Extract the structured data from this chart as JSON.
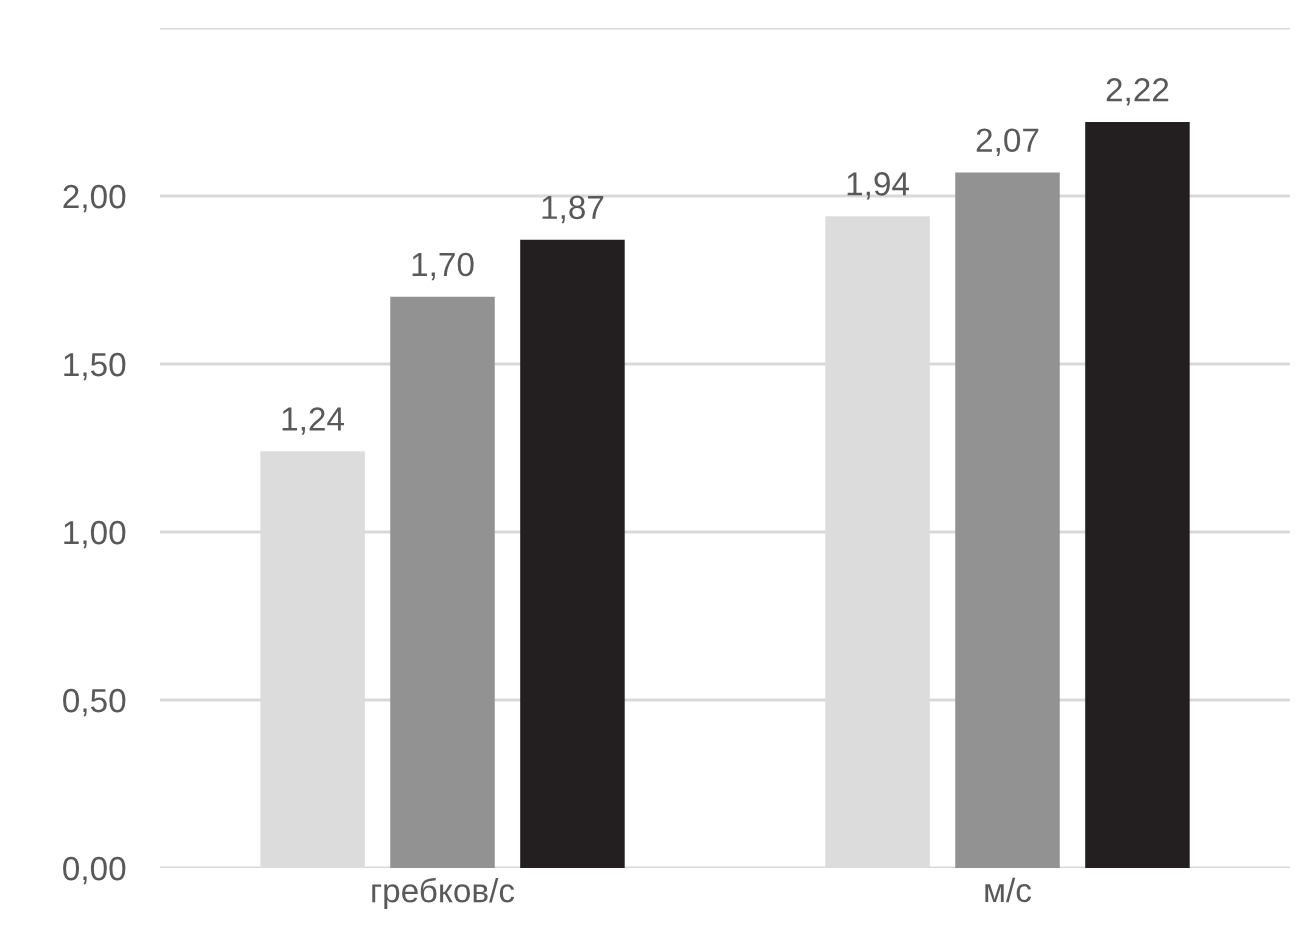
{
  "chart_data": {
    "type": "bar",
    "categories": [
      "гребков/с",
      "м/с"
    ],
    "series": [
      {
        "color": "#dcdcdd",
        "values": [
          1.24,
          1.94
        ],
        "value_labels": [
          "1,24",
          "1,94"
        ]
      },
      {
        "color": "#929293",
        "values": [
          1.7,
          2.07
        ],
        "value_labels": [
          "1,70",
          "2,07"
        ]
      },
      {
        "color": "#231f20",
        "values": [
          1.87,
          2.22
        ],
        "value_labels": [
          "1,87",
          "2,22"
        ]
      }
    ],
    "ylim": [
      0,
      2.5
    ],
    "yticks": [
      {
        "value": 0,
        "label": "0,00"
      },
      {
        "value": 0.5,
        "label": "0,50"
      },
      {
        "value": 1,
        "label": "1,00"
      },
      {
        "value": 1.5,
        "label": "1,50"
      },
      {
        "value": 2,
        "label": "2,00"
      },
      {
        "value": 2.5,
        "label": null
      }
    ],
    "grid": "y",
    "legend": false
  }
}
